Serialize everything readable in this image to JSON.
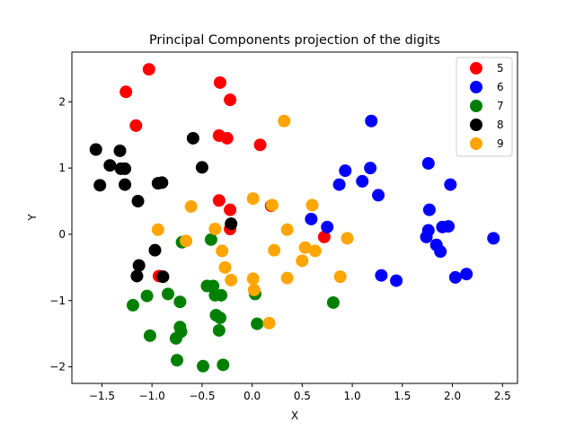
{
  "chart_data": {
    "type": "scatter",
    "title": "Principal Components projection of the digits",
    "xlabel": "X",
    "ylabel": "Y",
    "xlim": [
      -1.8,
      2.65
    ],
    "ylim": [
      -2.25,
      2.75
    ],
    "xticks": [
      -1.5,
      -1.0,
      -0.5,
      0.0,
      0.5,
      1.0,
      1.5,
      2.0,
      2.5
    ],
    "xtick_labels": [
      "−1.5",
      "−1.0",
      "−0.5",
      "0.0",
      "0.5",
      "1.0",
      "1.5",
      "2.0",
      "2.5"
    ],
    "yticks": [
      -2,
      -1,
      0,
      1,
      2
    ],
    "ytick_labels": [
      "−2",
      "−1",
      "0",
      "1",
      "2"
    ],
    "grid": false,
    "legend_placement": "top-right",
    "series": [
      {
        "name": "5",
        "color": "#ff0000",
        "points": [
          [
            -1.03,
            2.49
          ],
          [
            -1.26,
            2.15
          ],
          [
            -1.16,
            1.64
          ],
          [
            -0.32,
            2.29
          ],
          [
            -0.22,
            2.03
          ],
          [
            -0.33,
            1.49
          ],
          [
            -0.25,
            1.45
          ],
          [
            0.08,
            1.35
          ],
          [
            -0.33,
            0.51
          ],
          [
            -0.22,
            0.37
          ],
          [
            -0.22,
            0.08
          ],
          [
            0.19,
            0.43
          ],
          [
            0.72,
            -0.04
          ],
          [
            -0.93,
            -0.63
          ]
        ]
      },
      {
        "name": "6",
        "color": "#0000ff",
        "points": [
          [
            1.19,
            1.71
          ],
          [
            1.76,
            1.07
          ],
          [
            1.18,
            1.0
          ],
          [
            0.93,
            0.96
          ],
          [
            1.1,
            0.8
          ],
          [
            0.87,
            0.75
          ],
          [
            1.98,
            0.75
          ],
          [
            1.26,
            0.59
          ],
          [
            1.77,
            0.37
          ],
          [
            0.59,
            0.23
          ],
          [
            0.75,
            0.11
          ],
          [
            1.76,
            0.06
          ],
          [
            1.9,
            0.11
          ],
          [
            1.96,
            0.12
          ],
          [
            1.74,
            -0.04
          ],
          [
            1.84,
            -0.16
          ],
          [
            1.88,
            -0.26
          ],
          [
            2.41,
            -0.06
          ],
          [
            2.14,
            -0.6
          ],
          [
            2.03,
            -0.65
          ],
          [
            1.29,
            -0.62
          ],
          [
            1.44,
            -0.7
          ]
        ]
      },
      {
        "name": "7",
        "color": "#008000",
        "points": [
          [
            -0.7,
            -0.12
          ],
          [
            -0.41,
            -0.08
          ],
          [
            -0.45,
            -0.78
          ],
          [
            -0.39,
            -0.78
          ],
          [
            -0.31,
            -0.92
          ],
          [
            -0.37,
            -0.92
          ],
          [
            0.03,
            -0.9
          ],
          [
            -1.05,
            -0.93
          ],
          [
            -0.84,
            -0.9
          ],
          [
            -0.72,
            -1.02
          ],
          [
            -1.19,
            -1.07
          ],
          [
            -0.36,
            -1.22
          ],
          [
            -0.32,
            -1.26
          ],
          [
            0.05,
            -1.35
          ],
          [
            0.81,
            -1.03
          ],
          [
            -0.72,
            -1.4
          ],
          [
            -0.71,
            -1.47
          ],
          [
            -0.33,
            -1.45
          ],
          [
            -1.02,
            -1.53
          ],
          [
            -0.76,
            -1.57
          ],
          [
            -0.75,
            -1.9
          ],
          [
            -0.49,
            -1.99
          ],
          [
            -0.29,
            -1.97
          ]
        ]
      },
      {
        "name": "8",
        "color": "#000000",
        "points": [
          [
            -1.56,
            1.28
          ],
          [
            -1.32,
            1.26
          ],
          [
            -1.42,
            1.04
          ],
          [
            -1.31,
            0.99
          ],
          [
            -1.27,
            0.99
          ],
          [
            -0.59,
            1.45
          ],
          [
            -0.5,
            1.01
          ],
          [
            -1.52,
            0.74
          ],
          [
            -1.27,
            0.75
          ],
          [
            -0.94,
            0.77
          ],
          [
            -0.9,
            0.78
          ],
          [
            -1.14,
            0.5
          ],
          [
            -0.21,
            0.16
          ],
          [
            -0.97,
            -0.24
          ],
          [
            -1.13,
            -0.47
          ],
          [
            -1.15,
            -0.63
          ],
          [
            -0.89,
            -0.64
          ]
        ]
      },
      {
        "name": "9",
        "color": "#ffa500",
        "points": [
          [
            0.32,
            1.71
          ],
          [
            0.01,
            0.54
          ],
          [
            0.2,
            0.44
          ],
          [
            0.6,
            0.44
          ],
          [
            -0.61,
            0.42
          ],
          [
            -0.37,
            0.08
          ],
          [
            -0.94,
            0.07
          ],
          [
            0.35,
            0.07
          ],
          [
            -0.66,
            -0.1
          ],
          [
            0.95,
            -0.06
          ],
          [
            0.53,
            -0.2
          ],
          [
            -0.3,
            -0.25
          ],
          [
            0.22,
            -0.24
          ],
          [
            0.63,
            -0.25
          ],
          [
            0.5,
            -0.4
          ],
          [
            -0.27,
            -0.5
          ],
          [
            -0.21,
            -0.69
          ],
          [
            0.01,
            -0.67
          ],
          [
            0.35,
            -0.66
          ],
          [
            0.88,
            -0.64
          ],
          [
            0.02,
            -0.84
          ],
          [
            0.17,
            -1.34
          ]
        ]
      }
    ]
  }
}
